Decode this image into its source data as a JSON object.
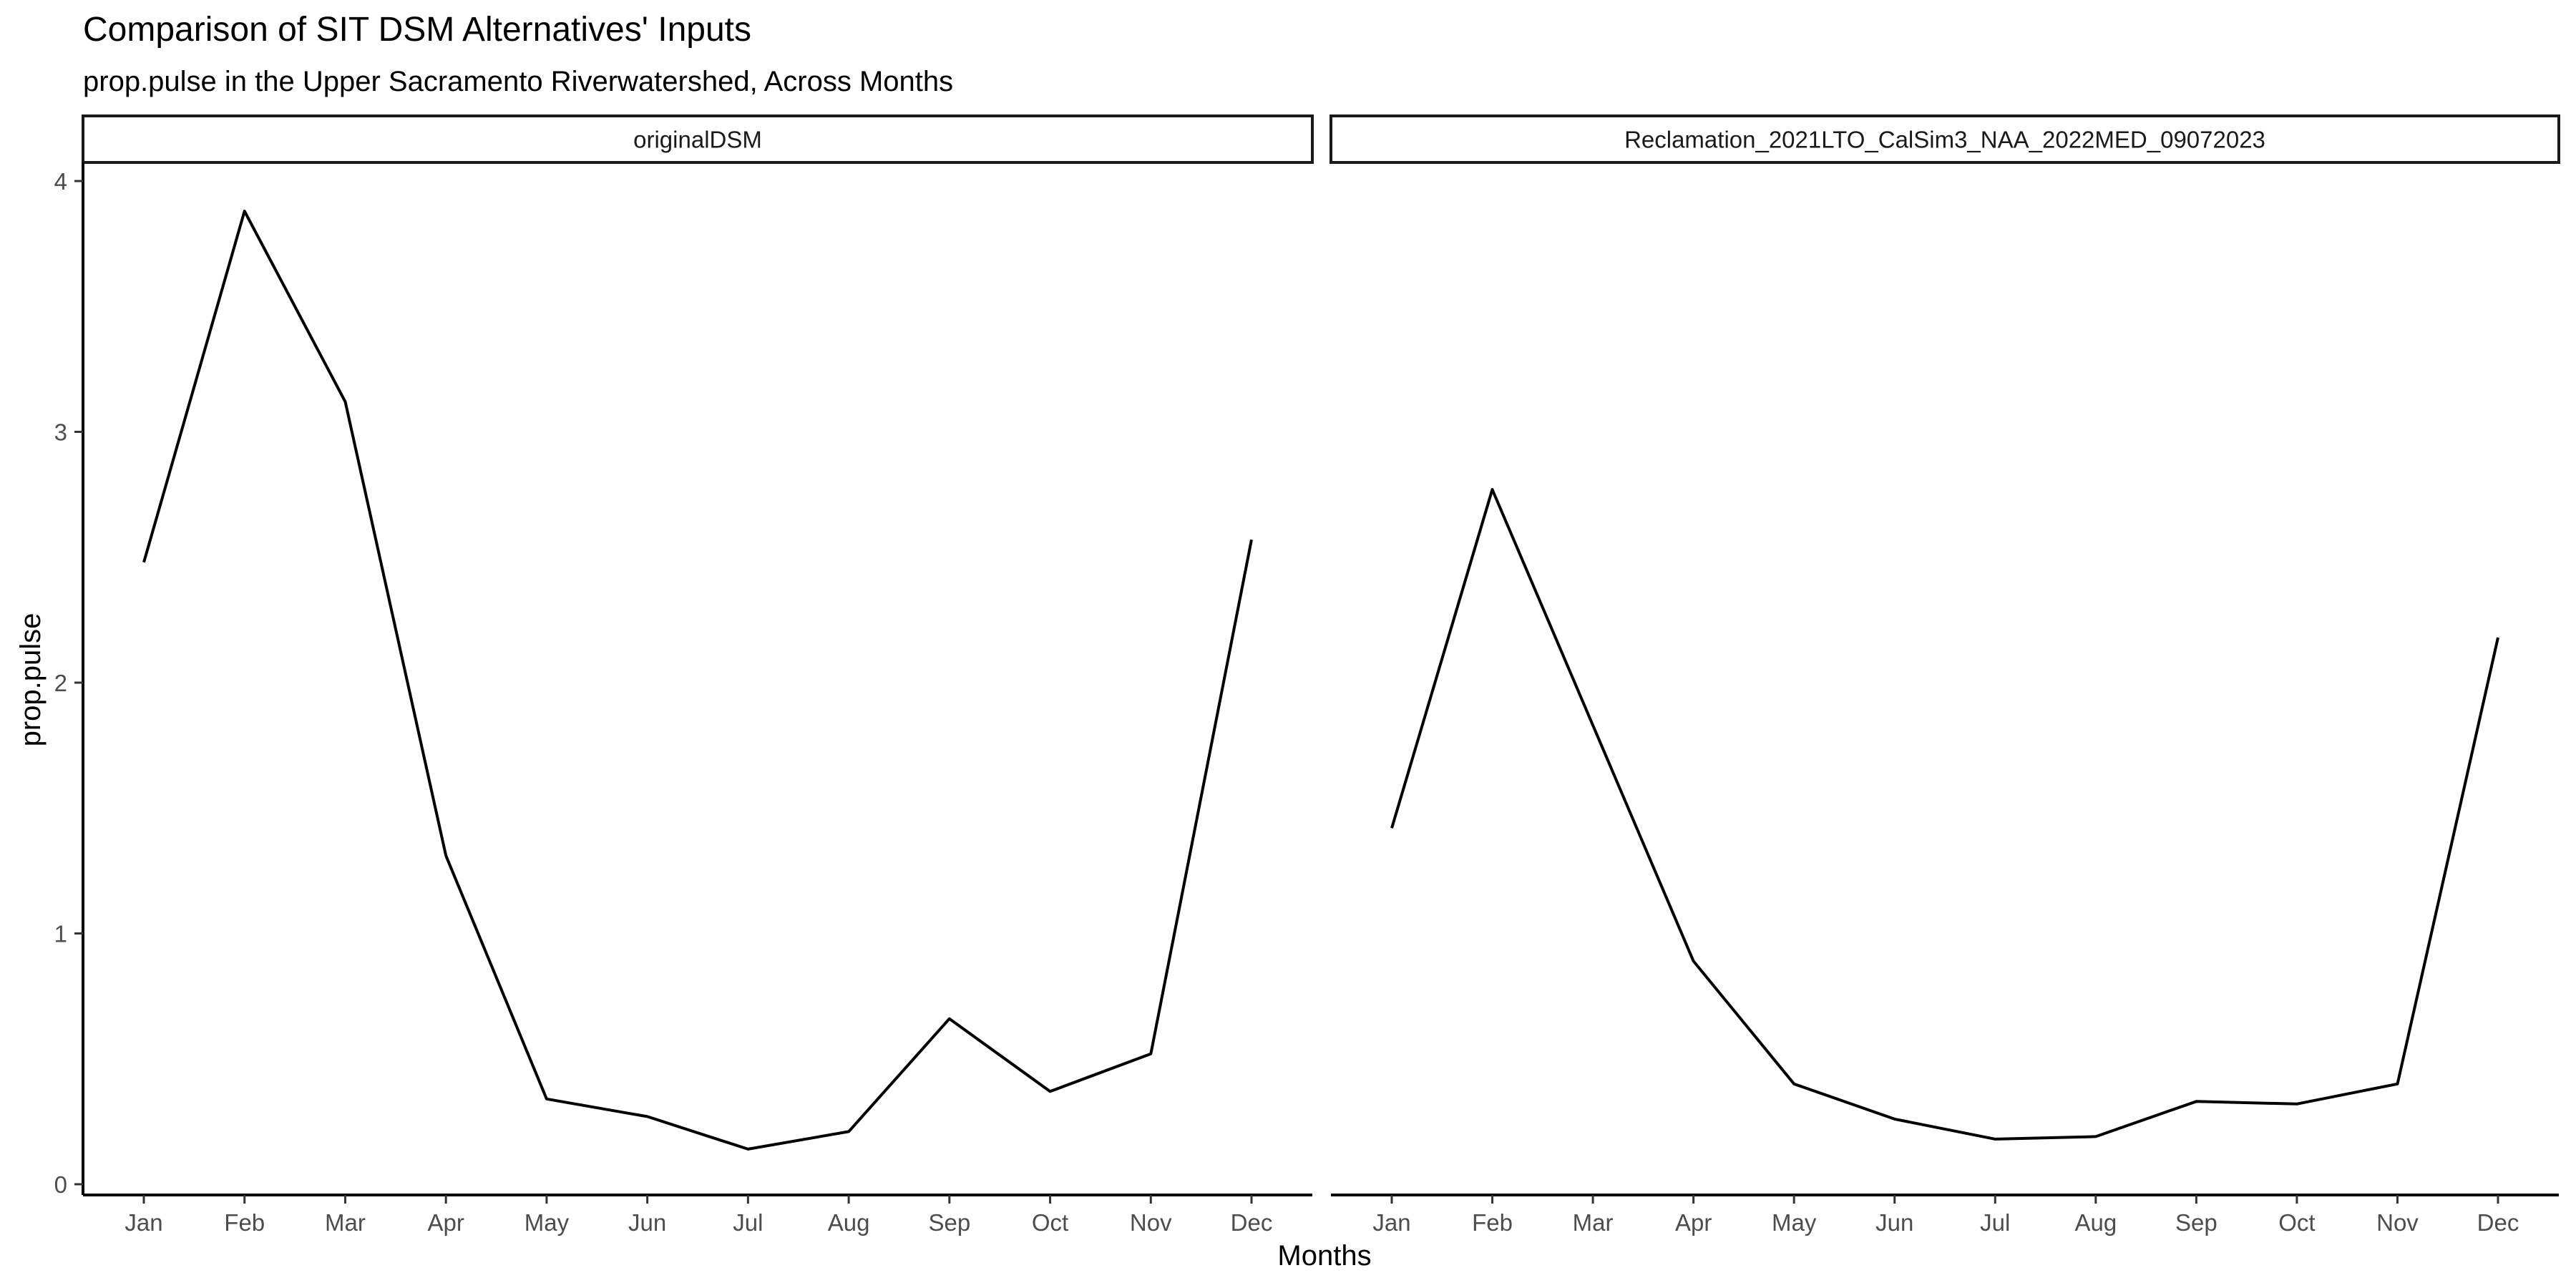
{
  "chart_data": {
    "type": "line",
    "title": "Comparison of SIT DSM Alternatives' Inputs",
    "subtitle": "prop.pulse in the Upper Sacramento Riverwatershed, Across Months",
    "xlabel": "Months",
    "ylabel": "prop.pulse",
    "categories": [
      "Jan",
      "Feb",
      "Mar",
      "Apr",
      "May",
      "Jun",
      "Jul",
      "Aug",
      "Sep",
      "Oct",
      "Nov",
      "Dec"
    ],
    "ylim": [
      0,
      4
    ],
    "yticks": [
      "0",
      "1",
      "2",
      "3",
      "4"
    ],
    "grid": false,
    "line_color": "#000000",
    "panels": [
      {
        "name": "originalDSM",
        "values": [
          2.48,
          3.88,
          3.12,
          1.31,
          0.34,
          0.27,
          0.14,
          0.21,
          0.66,
          0.37,
          0.52,
          2.57
        ]
      },
      {
        "name": "Reclamation_2021LTO_CalSim3_NAA_2022MED_09072023",
        "values": [
          1.42,
          2.77,
          1.83,
          0.89,
          0.4,
          0.26,
          0.18,
          0.19,
          0.33,
          0.32,
          0.4,
          2.18
        ]
      }
    ]
  }
}
